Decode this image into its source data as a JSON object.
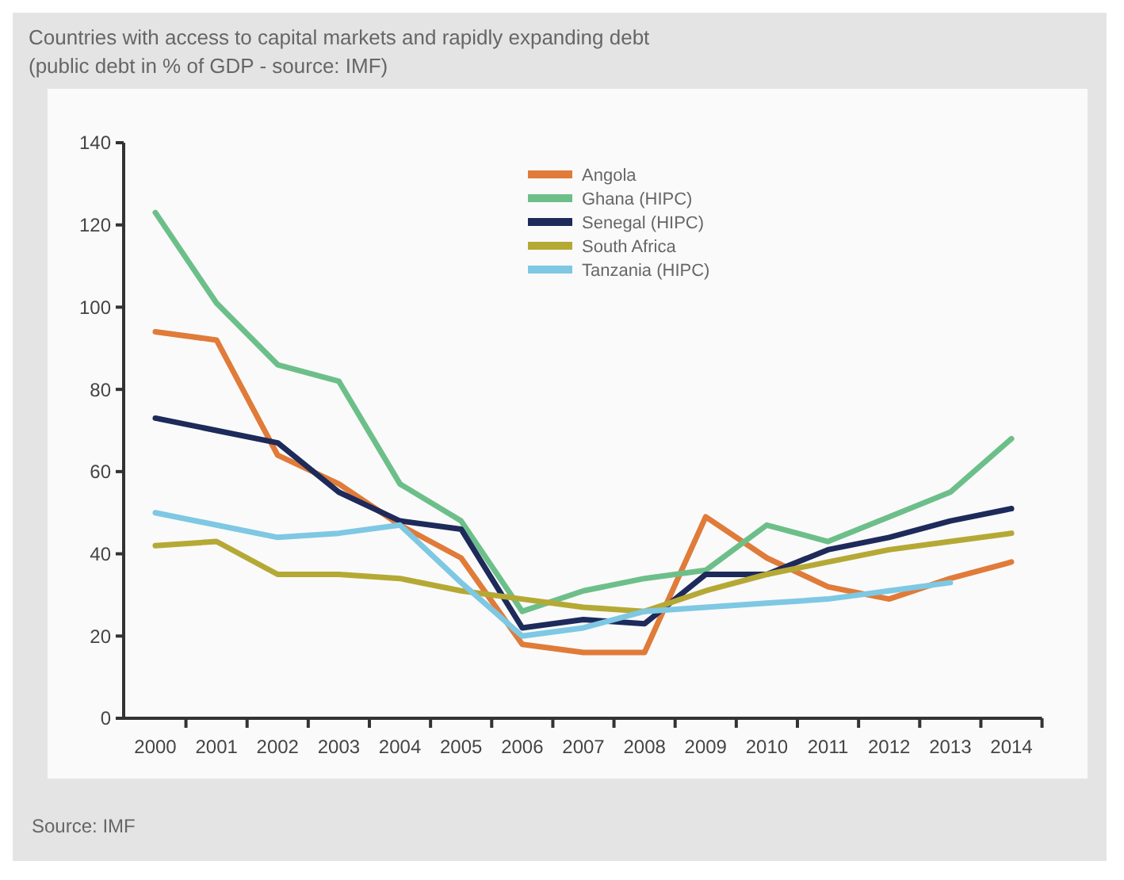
{
  "chart_data": {
    "type": "line",
    "title": "Countries with access to capital markets and rapidly expanding debt",
    "subtitle": "(public debt in % of GDP - source: IMF)",
    "categories": [
      "2000",
      "2001",
      "2002",
      "2003",
      "2004",
      "2005",
      "2006",
      "2007",
      "2008",
      "2009",
      "2010",
      "2011",
      "2012",
      "2013",
      "2014"
    ],
    "series": [
      {
        "name": "Angola",
        "color": "#e07b39",
        "values": [
          94,
          92,
          64,
          57,
          47,
          39,
          18,
          16,
          16,
          49,
          39,
          32,
          29,
          34,
          38
        ]
      },
      {
        "name": "Ghana (HIPC)",
        "color": "#6dbf8a",
        "values": [
          123,
          101,
          86,
          82,
          57,
          48,
          26,
          31,
          34,
          36,
          47,
          43,
          49,
          55,
          68
        ]
      },
      {
        "name": "Senegal (HIPC)",
        "color": "#1d2a5a",
        "values": [
          73,
          70,
          67,
          55,
          48,
          46,
          22,
          24,
          23,
          35,
          35,
          41,
          44,
          48,
          51
        ]
      },
      {
        "name": "South Africa",
        "color": "#b5a936",
        "values": [
          42,
          43,
          35,
          35,
          34,
          31,
          29,
          27,
          26,
          31,
          35,
          38,
          41,
          43,
          45
        ]
      },
      {
        "name": "Tanzania (HIPC)",
        "color": "#7ec8e3",
        "values": [
          50,
          47,
          44,
          45,
          47,
          33,
          20,
          22,
          26,
          27,
          28,
          29,
          31,
          33,
          null
        ]
      }
    ],
    "ylim": [
      0,
      140
    ],
    "yticks": [
      0,
      20,
      40,
      60,
      80,
      100,
      120,
      140
    ],
    "grid": false,
    "legend": "top",
    "line_style": "solid",
    "annotations": [
      "Source: IMF"
    ]
  }
}
